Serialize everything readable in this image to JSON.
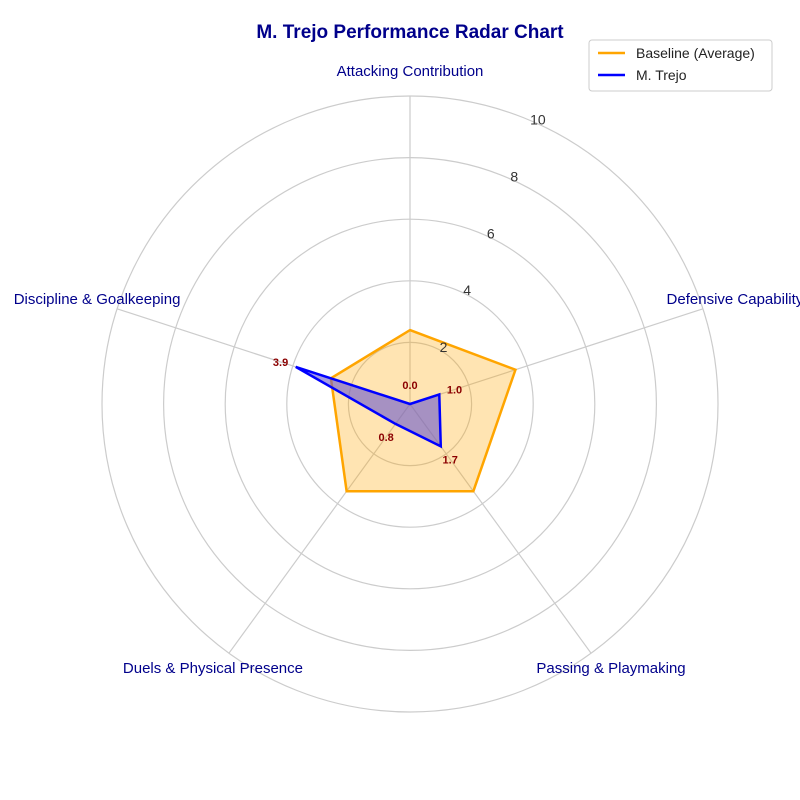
{
  "chart_data": {
    "type": "radar",
    "title": "M. Trejo Performance Radar Chart",
    "categories": [
      "Attacking Contribution",
      "Defensive Capability",
      "Passing & Playmaking",
      "Duels & Physical Presence",
      "Discipline & Goalkeeping"
    ],
    "rlim": [
      0,
      10
    ],
    "rticks": [
      "2",
      "4",
      "6",
      "8",
      "10"
    ],
    "grid": true,
    "legend_position": "top-right",
    "series": [
      {
        "name": "Baseline (Average)",
        "values": [
          2.4,
          3.6,
          3.5,
          3.5,
          2.7
        ],
        "line_color": "#FFA500",
        "fill_color": "#FFA500"
      },
      {
        "name": "M. Trejo",
        "values": [
          0.0,
          1.0,
          1.7,
          0.8,
          3.9
        ],
        "line_color": "#0000FF",
        "fill_color": "#6A5ACD"
      }
    ],
    "value_labels": [
      "0.0",
      "1.0",
      "1.7",
      "0.8",
      "3.9"
    ]
  }
}
